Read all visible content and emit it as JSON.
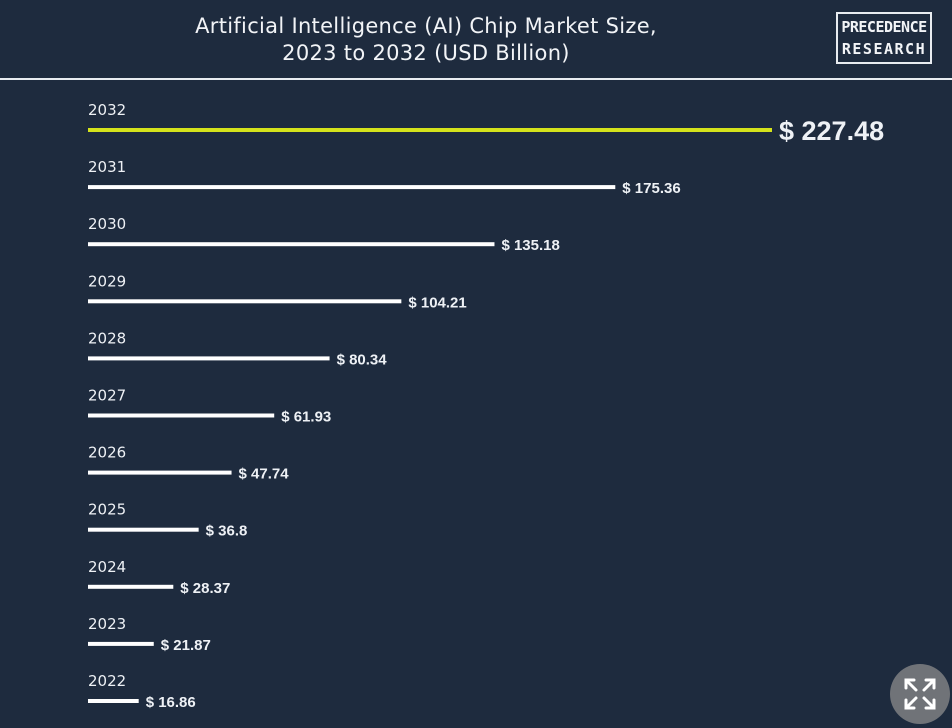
{
  "header": {
    "title_line1": "Artificial Intelligence (AI) Chip Market Size,",
    "title_line2": "2023 to 2032 (USD Billion)",
    "logo_line1": "PRECEDENCE",
    "logo_line2": "RESEARCH"
  },
  "chart_data": {
    "type": "bar",
    "orientation": "horizontal",
    "title": "Artificial Intelligence (AI) Chip Market Size, 2023 to 2032 (USD Billion)",
    "categories": [
      "2032",
      "2031",
      "2030",
      "2029",
      "2028",
      "2027",
      "2026",
      "2025",
      "2024",
      "2023",
      "2022"
    ],
    "values": [
      227.48,
      175.36,
      135.18,
      104.21,
      80.34,
      61.93,
      47.74,
      36.8,
      28.37,
      21.87,
      16.86
    ],
    "value_labels": [
      "$ 227.48",
      "$ 175.36",
      "$ 135.18",
      "$ 104.21",
      "$ 80.34",
      "$ 61.93",
      "$ 47.74",
      "$ 36.8",
      "$ 28.37",
      "$ 21.87",
      "$ 16.86"
    ],
    "highlight_index": 0,
    "colors": {
      "highlight": "#d4e21b",
      "bar": "#ffffff",
      "background": "#1e2b3e"
    },
    "grid": false,
    "legend": "none"
  },
  "controls": {
    "expand_icon": "expand-arrows-icon"
  }
}
